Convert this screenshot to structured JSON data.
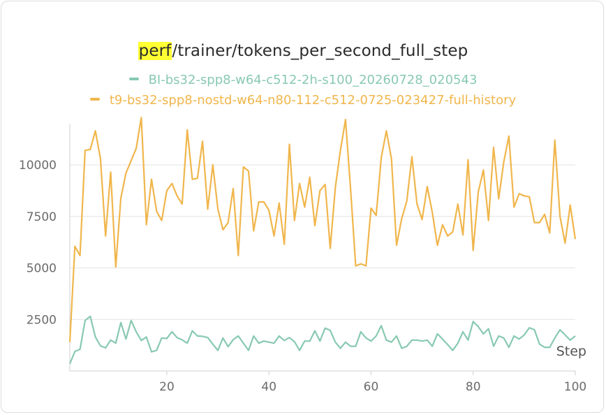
{
  "chart_data": {
    "type": "line",
    "title_highlight": "perf",
    "title_rest": "/trainer/tokens_per_second_full_step",
    "xlabel": "Step",
    "ylabel": "",
    "xlim": [
      1,
      100
    ],
    "ylim": [
      0,
      12000
    ],
    "x_ticks": [
      20,
      40,
      60,
      80,
      100
    ],
    "y_ticks": [
      2500,
      5000,
      7500,
      10000
    ],
    "y_tick_labels": [
      "2500",
      "5000",
      "7500",
      "10000"
    ],
    "x_tick_labels": [
      "20",
      "40",
      "60",
      "80",
      "100"
    ],
    "grid": true,
    "legend_position": "top-center",
    "series": [
      {
        "name": "BI-bs32-spp8-w64-c512-2h-s100_20260728_020543",
        "color": "#88c9b1",
        "x": [
          1,
          2,
          3,
          4,
          5,
          6,
          7,
          8,
          9,
          10,
          11,
          12,
          13,
          14,
          15,
          16,
          17,
          18,
          19,
          20,
          21,
          22,
          23,
          24,
          25,
          26,
          27,
          28,
          29,
          30,
          31,
          32,
          33,
          34,
          35,
          36,
          37,
          38,
          39,
          40,
          41,
          42,
          43,
          44,
          45,
          46,
          47,
          48,
          49,
          50,
          51,
          52,
          53,
          54,
          55,
          56,
          57,
          58,
          59,
          60,
          61,
          62,
          63,
          64,
          65,
          66,
          67,
          68,
          69,
          70,
          71,
          72,
          73,
          74,
          75,
          76,
          77,
          78,
          79,
          80,
          81,
          82,
          83,
          84,
          85,
          86,
          87,
          88,
          89,
          90,
          91,
          92,
          93,
          94,
          95,
          96,
          97,
          98,
          99,
          100
        ],
        "values": [
          350,
          950,
          1050,
          2450,
          2650,
          1650,
          1220,
          1120,
          1500,
          1350,
          2350,
          1550,
          2450,
          1900,
          1480,
          1650,
          930,
          1000,
          1600,
          1580,
          1900,
          1620,
          1510,
          1350,
          1950,
          1700,
          1680,
          1620,
          1300,
          1000,
          1600,
          1180,
          1520,
          1700,
          1350,
          1000,
          1700,
          1350,
          1450,
          1400,
          1350,
          1700,
          1480,
          1620,
          1420,
          1000,
          1450,
          1450,
          1950,
          1450,
          2080,
          1970,
          1400,
          1100,
          1400,
          1200,
          1200,
          1900,
          1600,
          1450,
          1700,
          2200,
          1500,
          1400,
          1700,
          1100,
          1200,
          1500,
          1500,
          1450,
          1500,
          1200,
          1800,
          1550,
          1280,
          1000,
          1350,
          1900,
          1500,
          2400,
          2150,
          1800,
          2050,
          1200,
          1700,
          1600,
          1150,
          1700,
          1550,
          1750,
          2100,
          2000,
          1300,
          1150,
          1150,
          1600,
          2000,
          1750,
          1500,
          1700
        ]
      },
      {
        "name": "t9-bs32-spp8-nostd-w64-n80-112-c512-0725-023427-full-history",
        "color": "#f0b64c",
        "x": [
          1,
          2,
          3,
          4,
          5,
          6,
          7,
          8,
          9,
          10,
          11,
          12,
          13,
          14,
          15,
          16,
          17,
          18,
          19,
          20,
          21,
          22,
          23,
          24,
          25,
          26,
          27,
          28,
          29,
          30,
          31,
          32,
          33,
          34,
          35,
          36,
          37,
          38,
          39,
          40,
          41,
          42,
          43,
          44,
          45,
          46,
          47,
          48,
          49,
          50,
          51,
          52,
          53,
          54,
          55,
          56,
          57,
          58,
          59,
          60,
          61,
          62,
          63,
          64,
          65,
          66,
          67,
          68,
          69,
          70,
          71,
          72,
          73,
          74,
          75,
          76,
          77,
          78,
          79,
          80,
          81,
          82,
          83,
          84,
          85,
          86,
          87,
          88,
          89,
          90,
          91,
          92,
          93,
          94,
          95,
          96,
          97,
          98,
          99,
          100
        ],
        "values": [
          1400,
          6050,
          5600,
          10700,
          10750,
          11650,
          10300,
          6550,
          9650,
          5050,
          8400,
          9600,
          10200,
          10800,
          12300,
          7100,
          9300,
          7750,
          7300,
          8750,
          9100,
          8500,
          8100,
          11700,
          9300,
          9350,
          11150,
          7850,
          10000,
          7850,
          6850,
          7200,
          8850,
          5600,
          9900,
          9700,
          6800,
          8200,
          8200,
          7800,
          6550,
          8150,
          6150,
          11000,
          7300,
          9100,
          7950,
          9400,
          7050,
          8750,
          9050,
          5950,
          8900,
          10700,
          12200,
          8800,
          5100,
          5200,
          5100,
          7900,
          7550,
          10350,
          11650,
          10300,
          6100,
          7400,
          8250,
          10400,
          8100,
          7350,
          8950,
          7700,
          6100,
          7100,
          6550,
          6750,
          8100,
          6600,
          10250,
          5850,
          8700,
          9750,
          7300,
          10850,
          8350,
          10150,
          11400,
          7950,
          8600,
          8500,
          8450,
          7200,
          7200,
          7600,
          6700,
          11200,
          7500,
          6200,
          8050,
          6400
        ]
      }
    ]
  }
}
